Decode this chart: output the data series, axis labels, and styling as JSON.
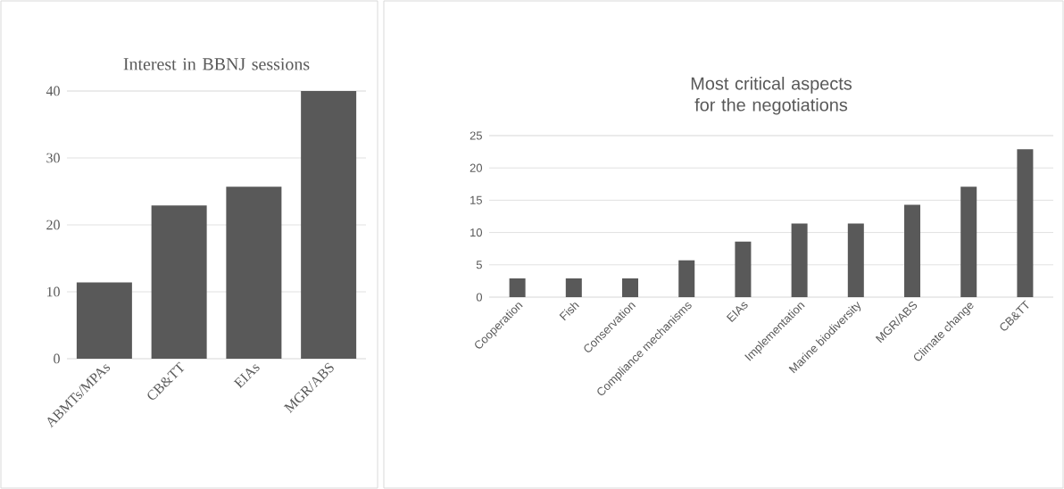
{
  "chart_data": [
    {
      "type": "bar",
      "title": "Interest in BBNJ sessions",
      "categories": [
        "ABMTs/MPAs",
        "CB&TT",
        "EIAs",
        "MGR/ABS"
      ],
      "values": [
        11.4,
        22.9,
        25.7,
        40
      ],
      "color": "#595959",
      "ylim": [
        0,
        40
      ],
      "yticks": [
        0,
        10,
        20,
        30,
        40
      ],
      "grid": "y"
    },
    {
      "type": "bar",
      "title": "Most critical aspects for the negotiations",
      "categories": [
        "Cooperation",
        "Fish",
        "Conservation",
        "Compliance mechanisms",
        "EIAs",
        "Implementation",
        "Marine biodiversity",
        "MGR/ABS",
        "Climate change",
        "CB&TT"
      ],
      "values": [
        2.9,
        2.9,
        2.9,
        5.7,
        8.6,
        11.4,
        11.4,
        14.3,
        17.1,
        22.9
      ],
      "color": "#595959",
      "ylim": [
        0,
        25
      ],
      "yticks": [
        0,
        5,
        10,
        15,
        20,
        25
      ],
      "grid": "y"
    }
  ]
}
